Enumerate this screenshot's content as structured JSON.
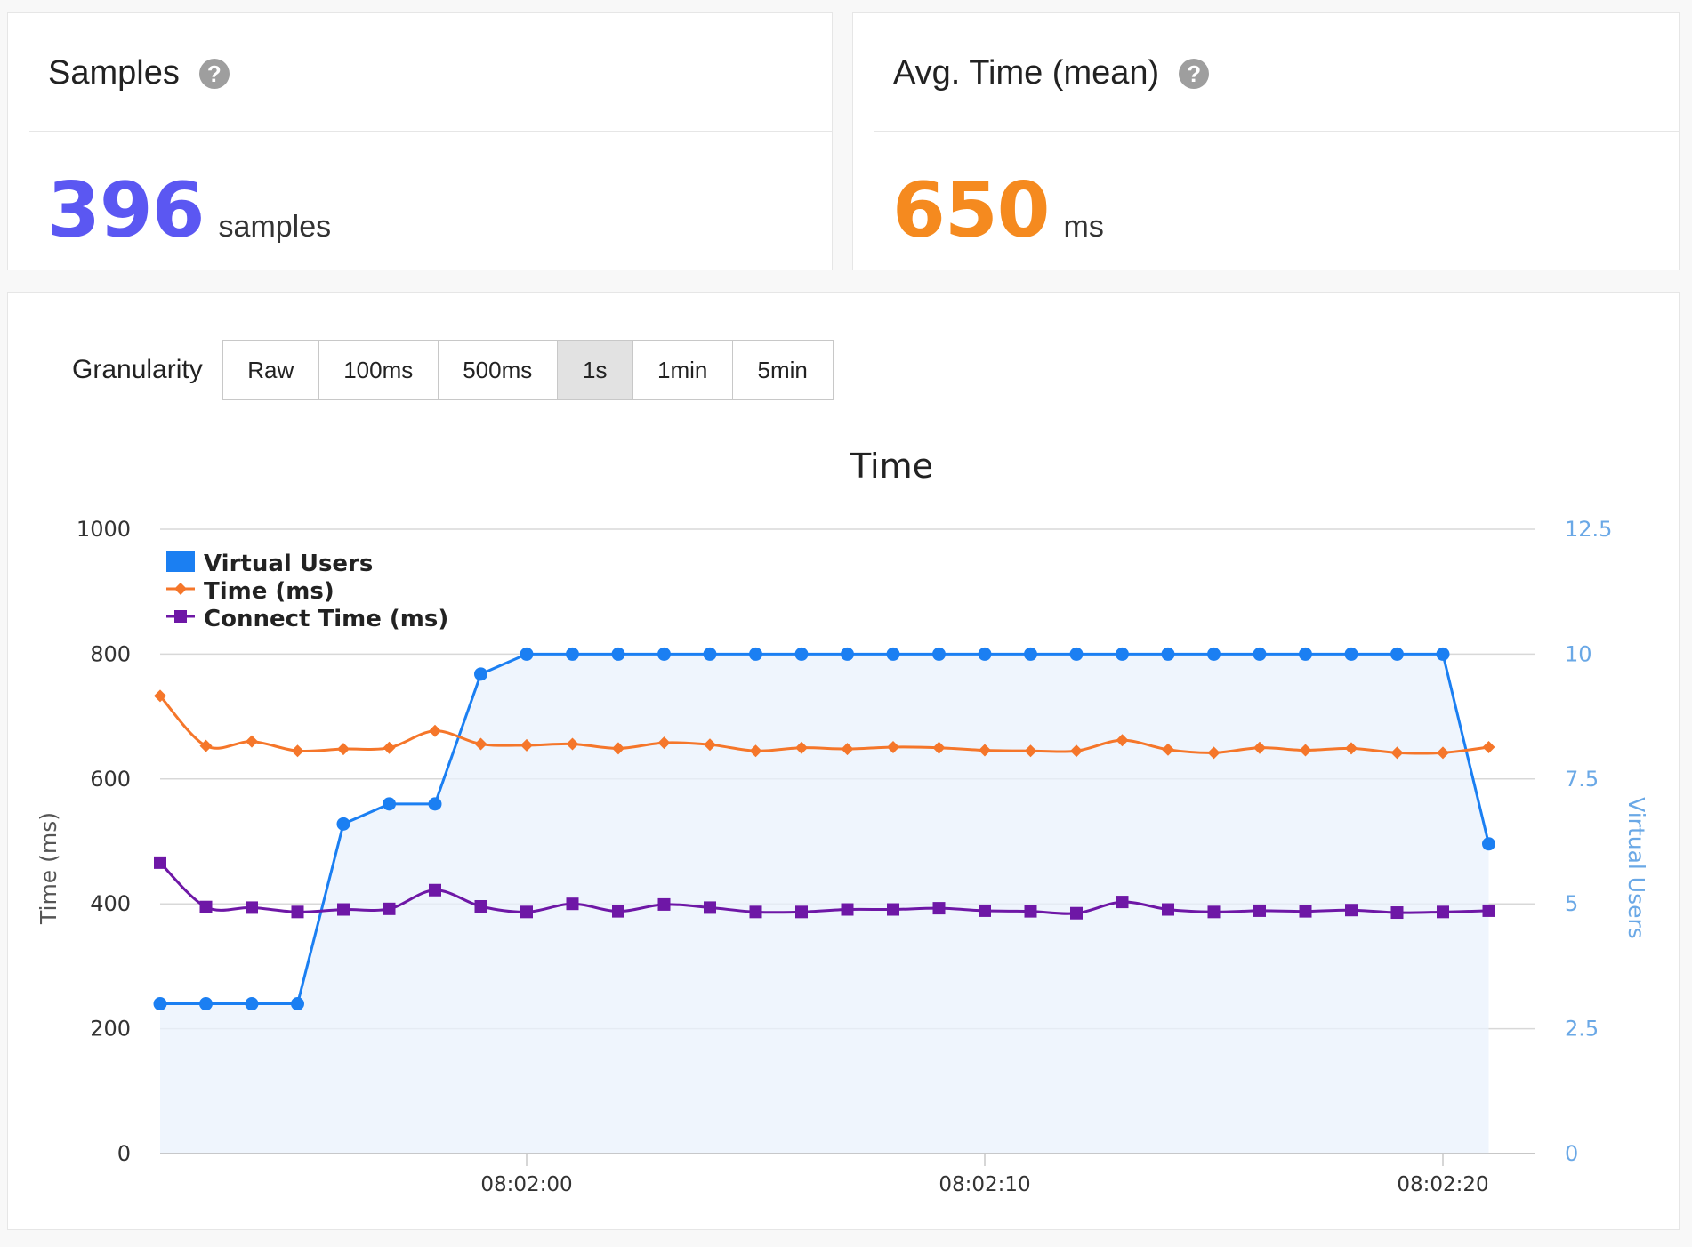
{
  "cards": {
    "samples": {
      "title": "Samples",
      "value": "396",
      "unit": "samples",
      "color": "#5b57f2"
    },
    "avg_time": {
      "title": "Avg. Time (mean)",
      "value": "650",
      "unit": "ms",
      "color": "#f58a1f"
    }
  },
  "help_icon": "question-circle-icon",
  "granularity": {
    "label": "Granularity",
    "options": [
      "Raw",
      "100ms",
      "500ms",
      "1s",
      "1min",
      "5min"
    ],
    "selected": "1s"
  },
  "chart_data": {
    "type": "line",
    "title": "Time",
    "xlabel": "",
    "ylabel": "Time (ms)",
    "y2label": "Virtual Users",
    "ylim": [
      0,
      1000
    ],
    "y2lim": [
      0,
      12.5
    ],
    "yticks": [
      "0",
      "200",
      "400",
      "600",
      "800",
      "1000"
    ],
    "y2ticks": [
      "0",
      "2.5",
      "5",
      "7.5",
      "10",
      "12.5"
    ],
    "x_start": "08:01:52",
    "x_end": "08:02:22",
    "xticks": [
      "08:02:00",
      "08:02:10",
      "08:02:20"
    ],
    "grid": true,
    "legend_position": "top-left",
    "x": [
      "08:01:52",
      "08:01:53",
      "08:01:54",
      "08:01:55",
      "08:01:56",
      "08:01:57",
      "08:01:58",
      "08:01:59",
      "08:02:00",
      "08:02:01",
      "08:02:02",
      "08:02:03",
      "08:02:04",
      "08:02:05",
      "08:02:06",
      "08:02:07",
      "08:02:08",
      "08:02:09",
      "08:02:10",
      "08:02:11",
      "08:02:12",
      "08:02:13",
      "08:02:14",
      "08:02:15",
      "08:02:16",
      "08:02:17",
      "08:02:18",
      "08:02:19",
      "08:02:20",
      "08:02:21"
    ],
    "series": [
      {
        "name": "Virtual Users",
        "axis": "right",
        "color": "#1b7ff2",
        "marker": "circle",
        "area": true,
        "values": [
          3,
          3,
          3,
          3,
          6.6,
          7,
          7,
          9.6,
          10,
          10,
          10,
          10,
          10,
          10,
          10,
          10,
          10,
          10,
          10,
          10,
          10,
          10,
          10,
          10,
          10,
          10,
          10,
          10,
          10,
          6.2
        ]
      },
      {
        "name": "Time (ms)",
        "axis": "left",
        "color": "#f5762a",
        "marker": "diamond",
        "values": [
          733,
          653,
          660,
          645,
          648,
          650,
          677,
          656,
          654,
          656,
          649,
          658,
          655,
          645,
          650,
          648,
          651,
          650,
          646,
          645,
          645,
          662,
          647,
          642,
          650,
          646,
          649,
          642,
          642,
          651
        ]
      },
      {
        "name": "Connect Time (ms)",
        "axis": "left",
        "color": "#6e17a6",
        "marker": "square",
        "values": [
          466,
          395,
          394,
          387,
          391,
          392,
          422,
          396,
          387,
          400,
          388,
          399,
          394,
          387,
          387,
          391,
          391,
          393,
          389,
          388,
          385,
          403,
          391,
          387,
          389,
          388,
          390,
          386,
          387,
          389
        ]
      }
    ]
  }
}
